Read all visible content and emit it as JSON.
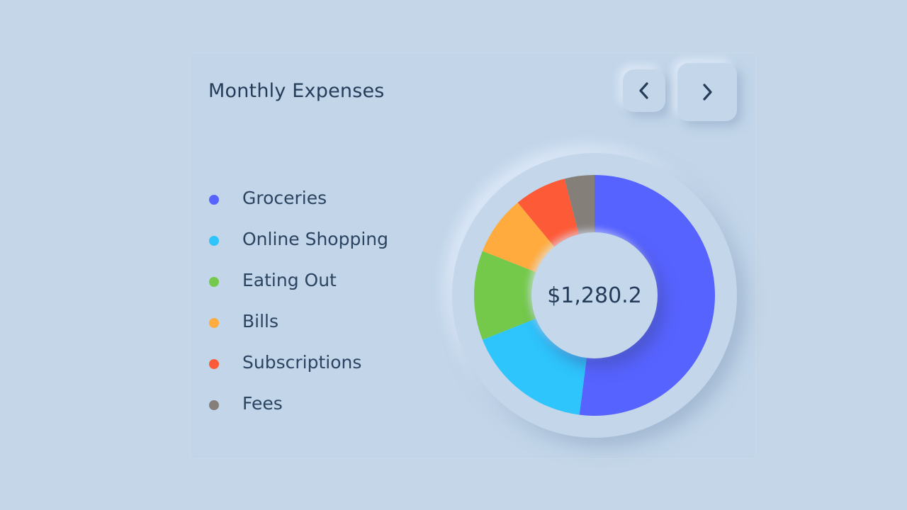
{
  "card": {
    "title": "Monthly Expenses",
    "prev_icon": "chevron-left-icon",
    "next_icon": "chevron-right-icon",
    "total": "$1,280.2"
  },
  "chart_data": {
    "type": "pie",
    "categories": [
      "Groceries",
      "Online Shopping",
      "Eating Out",
      "Bills",
      "Subscriptions",
      "Fees"
    ],
    "values": [
      52,
      17,
      12,
      8,
      7,
      4
    ],
    "colors": [
      "#5763ff",
      "#2ec5fc",
      "#74c94a",
      "#ffab3d",
      "#fd5a37",
      "#857f7a"
    ],
    "donut": true,
    "legend": "left"
  }
}
